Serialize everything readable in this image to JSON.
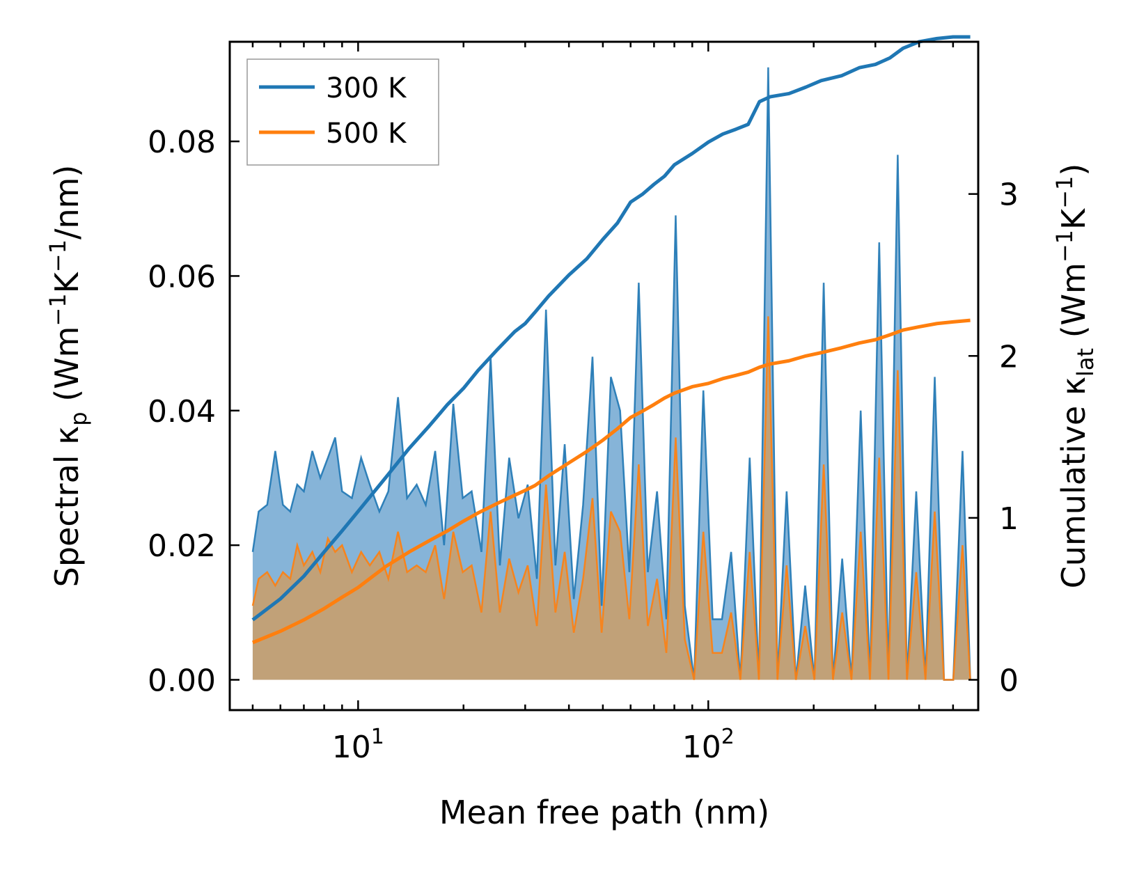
{
  "chart_data": {
    "type": "line",
    "title": "",
    "xlabel": "Mean free path (nm)",
    "ylabel_left": {
      "base": "Spectral κ",
      "sub": "p",
      "units_pre": " (Wm",
      "sup1": "−1",
      "mid": "K",
      "sup2": "−1",
      "units_post": "/nm)"
    },
    "ylabel_right": {
      "base": "Cumulative κ",
      "sub": "lat",
      "units_pre": " (Wm",
      "sup1": "−1",
      "mid": "K",
      "sup2": "−1",
      "units_post": ")"
    },
    "xscale": "log",
    "xlim": [
      4.3,
      590
    ],
    "ylim_left": [
      -0.0045,
      0.0948
    ],
    "ylim_right": [
      -0.187,
      3.94
    ],
    "xticks_major": [
      {
        "value": 10,
        "base": "10",
        "exp": "1"
      },
      {
        "value": 100,
        "base": "10",
        "exp": "2"
      }
    ],
    "yticks_left": [
      "0.00",
      "0.02",
      "0.04",
      "0.06",
      "0.08"
    ],
    "yticks_left_values": [
      0,
      0.02,
      0.04,
      0.06,
      0.08
    ],
    "yticks_right": [
      "0",
      "1",
      "2",
      "3"
    ],
    "yticks_right_values": [
      0,
      1,
      2,
      3
    ],
    "legend": {
      "position": "top-left",
      "entries": [
        "300 K",
        "500 K"
      ]
    },
    "colors": {
      "300 K": "#1f77b4",
      "500 K": "#ff7f0e",
      "fill_300": "#7fb0d6",
      "fill_500": "#c89e6e"
    },
    "series_spectral": [
      {
        "name": "300 K",
        "axis": "left",
        "x": [
          5.0,
          5.2,
          5.5,
          5.8,
          6.1,
          6.4,
          6.7,
          7.0,
          7.4,
          7.8,
          8.2,
          8.6,
          9.0,
          9.6,
          10.2,
          10.8,
          11.5,
          12.2,
          13.0,
          13.8,
          14.7,
          15.6,
          16.6,
          17.6,
          18.7,
          19.9,
          21.1,
          22.5,
          23.9,
          25.4,
          27.0,
          28.7,
          30.5,
          32.4,
          34.4,
          36.6,
          38.9,
          41.3,
          43.9,
          46.7,
          49.6,
          52.7,
          56.0,
          59.5,
          63.3,
          67.2,
          71.4,
          75.9,
          80.7,
          85.7,
          91.1,
          96.8,
          102.9,
          109.4,
          116.2,
          123.5,
          131.3,
          139.5,
          148.3,
          157.6,
          167.4,
          177.9,
          189.1,
          201.0,
          213.6,
          227.0,
          241.2,
          256.4,
          272.4,
          289.5,
          307.7,
          327.0,
          347.5,
          369.3,
          392.5,
          417.1,
          443.3,
          471.1,
          500.7,
          532.1,
          560.0
        ],
        "y": [
          0.019,
          0.025,
          0.026,
          0.034,
          0.026,
          0.025,
          0.029,
          0.028,
          0.034,
          0.03,
          0.033,
          0.036,
          0.028,
          0.027,
          0.033,
          0.029,
          0.025,
          0.028,
          0.042,
          0.027,
          0.029,
          0.026,
          0.034,
          0.02,
          0.041,
          0.027,
          0.028,
          0.019,
          0.048,
          0.017,
          0.033,
          0.024,
          0.029,
          0.015,
          0.055,
          0.017,
          0.035,
          0.012,
          0.026,
          0.048,
          0.011,
          0.045,
          0.04,
          0.016,
          0.059,
          0.016,
          0.028,
          0.009,
          0.069,
          0.011,
          0.0,
          0.043,
          0.009,
          0.009,
          0.019,
          0.0,
          0.033,
          0.0,
          0.091,
          0.0,
          0.028,
          0.0,
          0.014,
          0.0,
          0.059,
          0.0,
          0.018,
          0.0,
          0.04,
          0.0,
          0.065,
          0.0,
          0.078,
          0.0,
          0.028,
          0.0,
          0.045,
          0.0,
          0.0,
          0.034,
          0.0
        ]
      },
      {
        "name": "500 K",
        "axis": "left",
        "x": [
          5.0,
          5.2,
          5.5,
          5.8,
          6.1,
          6.4,
          6.7,
          7.0,
          7.4,
          7.8,
          8.2,
          8.6,
          9.0,
          9.6,
          10.2,
          10.8,
          11.5,
          12.2,
          13.0,
          13.8,
          14.7,
          15.6,
          16.6,
          17.6,
          18.7,
          19.9,
          21.1,
          22.5,
          23.9,
          25.4,
          27.0,
          28.7,
          30.5,
          32.4,
          34.4,
          36.6,
          38.9,
          41.3,
          43.9,
          46.7,
          49.6,
          52.7,
          56.0,
          59.5,
          63.3,
          67.2,
          71.4,
          75.9,
          80.7,
          85.7,
          91.1,
          96.8,
          102.9,
          109.4,
          116.2,
          123.5,
          131.3,
          139.5,
          148.3,
          157.6,
          167.4,
          177.9,
          189.1,
          201.0,
          213.6,
          227.0,
          241.2,
          256.4,
          272.4,
          289.5,
          307.7,
          327.0,
          347.5,
          369.3,
          392.5,
          417.1,
          443.3,
          471.1,
          500.7,
          532.1,
          560.0
        ],
        "y": [
          0.011,
          0.015,
          0.016,
          0.014,
          0.016,
          0.015,
          0.02,
          0.017,
          0.019,
          0.016,
          0.021,
          0.019,
          0.02,
          0.016,
          0.019,
          0.017,
          0.019,
          0.015,
          0.022,
          0.016,
          0.017,
          0.016,
          0.02,
          0.012,
          0.022,
          0.016,
          0.017,
          0.01,
          0.025,
          0.01,
          0.018,
          0.013,
          0.017,
          0.008,
          0.029,
          0.01,
          0.019,
          0.007,
          0.015,
          0.027,
          0.007,
          0.025,
          0.022,
          0.009,
          0.032,
          0.008,
          0.015,
          0.004,
          0.036,
          0.006,
          0.0,
          0.022,
          0.004,
          0.004,
          0.01,
          0.0,
          0.019,
          0.0,
          0.054,
          0.0,
          0.017,
          0.0,
          0.008,
          0.0,
          0.032,
          0.0,
          0.01,
          0.0,
          0.022,
          0.0,
          0.033,
          0.0,
          0.046,
          0.0,
          0.016,
          0.0,
          0.025,
          0.0,
          0.0,
          0.02,
          0.0
        ]
      }
    ],
    "series_cumulative": [
      {
        "name": "300 K",
        "axis": "right",
        "x": [
          5.0,
          6.0,
          7.0,
          8.0,
          9.0,
          10.0,
          12.0,
          14.0,
          16.0,
          18.0,
          20.0,
          22.0,
          25.0,
          28.0,
          30.0,
          32.0,
          35.0,
          40.0,
          45.0,
          50.0,
          55.0,
          60.0,
          65.0,
          70.0,
          75.0,
          80.0,
          90.0,
          100.0,
          110.0,
          120.0,
          130.0,
          140.0,
          150.0,
          170.0,
          190.0,
          210.0,
          240.0,
          270.0,
          300.0,
          330.0,
          360.0,
          400.0,
          450.0,
          500.0,
          560.0
        ],
        "y": [
          0.37,
          0.5,
          0.64,
          0.79,
          0.92,
          1.04,
          1.25,
          1.43,
          1.57,
          1.7,
          1.8,
          1.91,
          2.04,
          2.15,
          2.2,
          2.27,
          2.37,
          2.5,
          2.6,
          2.72,
          2.82,
          2.95,
          3.0,
          3.06,
          3.11,
          3.18,
          3.25,
          3.32,
          3.37,
          3.4,
          3.43,
          3.57,
          3.6,
          3.62,
          3.66,
          3.7,
          3.73,
          3.78,
          3.8,
          3.84,
          3.9,
          3.94,
          3.96,
          3.97,
          3.97
        ]
      },
      {
        "name": "500 K",
        "axis": "right",
        "x": [
          5.0,
          6.0,
          7.0,
          8.0,
          9.0,
          10.0,
          12.0,
          14.0,
          16.0,
          18.0,
          20.0,
          22.0,
          25.0,
          28.0,
          30.0,
          32.0,
          35.0,
          40.0,
          45.0,
          50.0,
          55.0,
          60.0,
          65.0,
          70.0,
          75.0,
          80.0,
          90.0,
          100.0,
          110.0,
          120.0,
          130.0,
          140.0,
          150.0,
          170.0,
          190.0,
          210.0,
          240.0,
          270.0,
          300.0,
          330.0,
          360.0,
          400.0,
          450.0,
          500.0,
          560.0
        ],
        "y": [
          0.23,
          0.3,
          0.37,
          0.44,
          0.51,
          0.57,
          0.7,
          0.79,
          0.86,
          0.92,
          0.98,
          1.03,
          1.09,
          1.14,
          1.17,
          1.2,
          1.26,
          1.34,
          1.41,
          1.48,
          1.55,
          1.62,
          1.66,
          1.7,
          1.74,
          1.77,
          1.81,
          1.83,
          1.86,
          1.88,
          1.9,
          1.93,
          1.95,
          1.97,
          2.0,
          2.02,
          2.05,
          2.08,
          2.1,
          2.13,
          2.16,
          2.18,
          2.2,
          2.21,
          2.22
        ]
      }
    ]
  }
}
